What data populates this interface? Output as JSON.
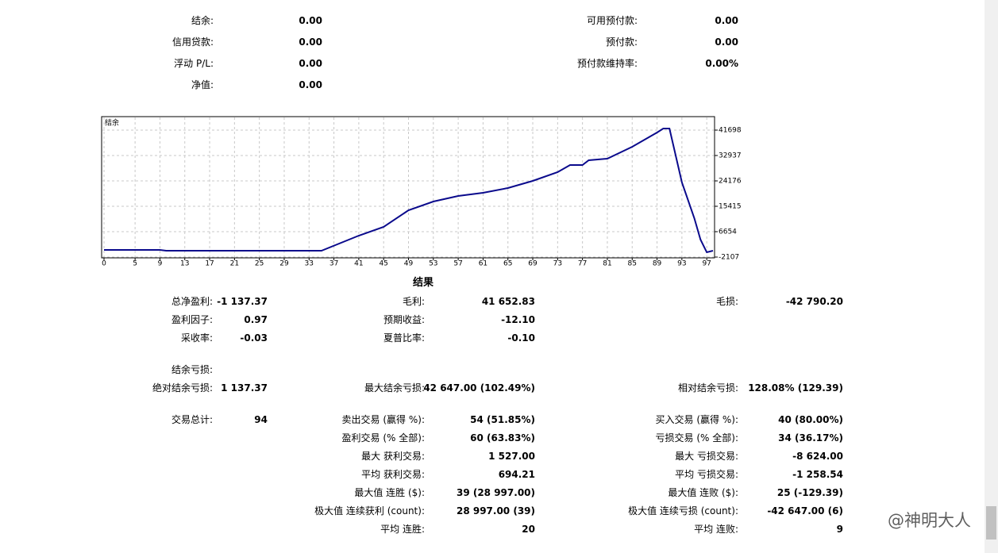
{
  "summary": {
    "left": [
      {
        "label": "结余:",
        "value": "0.00"
      },
      {
        "label": "信用贷款:",
        "value": "0.00"
      },
      {
        "label": "浮动 P/L:",
        "value": "0.00"
      },
      {
        "label": "净值:",
        "value": "0.00"
      }
    ],
    "right": [
      {
        "label": "可用预付款:",
        "value": "0.00"
      },
      {
        "label": "预付款:",
        "value": "0.00"
      },
      {
        "label": "预付款维持率:",
        "value": "0.00%"
      }
    ]
  },
  "chart_data": {
    "type": "line",
    "x": [
      0,
      9,
      10,
      35,
      41,
      45,
      49,
      53,
      57,
      61,
      65,
      69,
      73,
      75,
      77,
      78,
      81,
      85,
      89,
      90,
      91,
      93,
      95,
      96,
      97,
      98
    ],
    "series": [
      {
        "name": "结余",
        "color": "#0a0a8c",
        "values": [
          357,
          357,
          83,
          83,
          5286,
          8298,
          14047,
          17059,
          18976,
          20071,
          21714,
          24178,
          27190,
          29654,
          29654,
          31297,
          31845,
          35952,
          40880,
          42249,
          42249,
          23631,
          11310,
          3917,
          -464,
          83
        ]
      }
    ],
    "xlim": [
      0,
      98
    ],
    "xticks": [
      0,
      5,
      9,
      13,
      17,
      21,
      25,
      29,
      33,
      37,
      41,
      45,
      49,
      53,
      57,
      61,
      65,
      69,
      73,
      77,
      81,
      85,
      89,
      93,
      97
    ],
    "ylim": [
      -2107,
      46078
    ],
    "yticks": [
      -2107,
      6654,
      15415,
      24176,
      32937,
      41698
    ],
    "grid": true
  },
  "results": {
    "title": "结果",
    "rows": [
      [
        {
          "label": "总净盈利:",
          "value": "-1 137.37"
        },
        {
          "label": "毛利:",
          "value": "41 652.83"
        },
        {
          "label": "毛损:",
          "value": "-42 790.20"
        }
      ],
      [
        {
          "label": "盈利因子:",
          "value": "0.97"
        },
        {
          "label": "预期收益:",
          "value": "-12.10"
        },
        null
      ],
      [
        {
          "label": "采收率:",
          "value": "-0.03"
        },
        {
          "label": "夏普比率:",
          "value": "-0.10"
        },
        null
      ],
      [
        {
          "label": "结余亏损:"
        },
        null,
        null
      ],
      [
        {
          "label": "绝对结余亏损:",
          "value": "1 137.37"
        },
        {
          "label": "最大结余亏损:",
          "value": "42 647.00 (102.49%)"
        },
        {
          "label": "相对结余亏损:",
          "value": "128.08% (129.39)"
        }
      ],
      [
        {
          "label": "交易总计:",
          "value": "94"
        },
        {
          "label": "卖出交易 (赢得 %):",
          "value": "54 (51.85%)"
        },
        {
          "label": "买入交易 (赢得 %):",
          "value": "40 (80.00%)"
        }
      ],
      [
        null,
        {
          "label": "盈利交易 (% 全部):",
          "value": "60 (63.83%)"
        },
        {
          "label": "亏损交易 (% 全部):",
          "value": "34 (36.17%)"
        }
      ],
      [
        null,
        {
          "label": "最大 获利交易:",
          "value": "1 527.00"
        },
        {
          "label": "最大 亏损交易:",
          "value": "-8 624.00"
        }
      ],
      [
        null,
        {
          "label": "平均 获利交易:",
          "value": "694.21"
        },
        {
          "label": "平均 亏损交易:",
          "value": "-1 258.54"
        }
      ],
      [
        null,
        {
          "label": "最大值 连胜 ($):",
          "value": "39 (28 997.00)"
        },
        {
          "label": "最大值 连败 ($):",
          "value": "25 (-129.39)"
        }
      ],
      [
        null,
        {
          "label": "极大值 连续获利 (count):",
          "value": "28 997.00 (39)"
        },
        {
          "label": "极大值 连续亏损 (count):",
          "value": "-42 647.00 (6)"
        }
      ],
      [
        null,
        {
          "label": "平均 连胜:",
          "value": "20"
        },
        {
          "label": "平均 连败:",
          "value": "9"
        }
      ]
    ]
  },
  "watermark": "@神明大人"
}
